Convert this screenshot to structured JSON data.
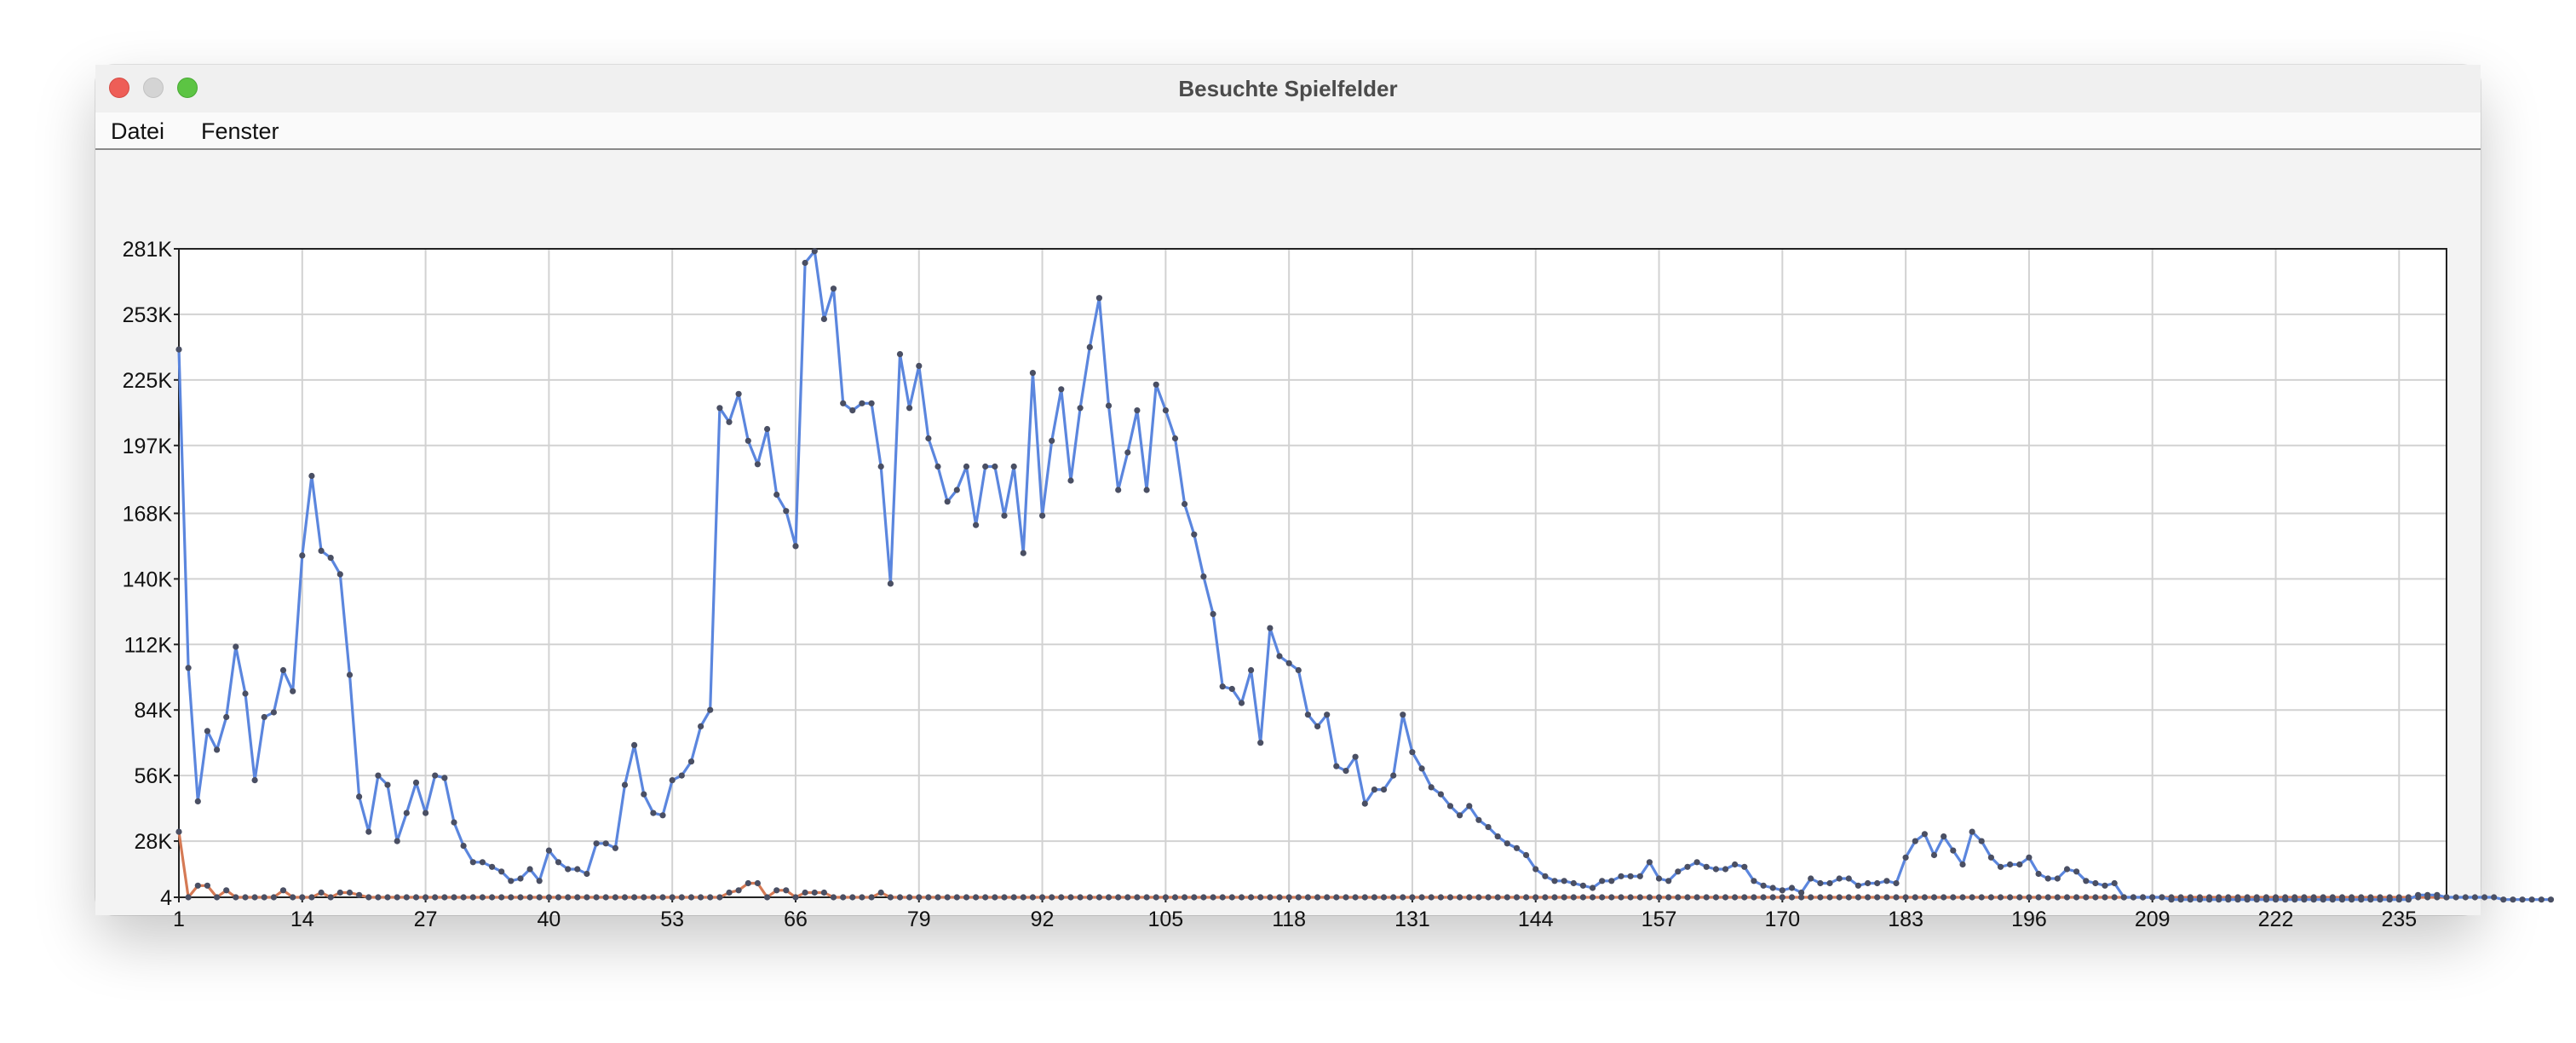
{
  "window": {
    "title": "Besuchte Spielfelder"
  },
  "menu": {
    "items": [
      "Datei",
      "Fenster"
    ]
  },
  "colors": {
    "series_visited": "#5b86de",
    "series_other": "#d57a55",
    "marker": "#4a4f63",
    "grid": "#d2d2d2",
    "plot_background": "#ffffff",
    "window_background": "#f3f3f3"
  },
  "chart_data": {
    "type": "line",
    "title": "",
    "xlabel": "",
    "ylabel": "",
    "x_start": 1,
    "x_end": 240,
    "xlim": [
      1,
      240
    ],
    "ylim": [
      4,
      281
    ],
    "x_ticks": [
      "1",
      "14",
      "27",
      "40",
      "53",
      "66",
      "79",
      "92",
      "105",
      "118",
      "131",
      "144",
      "157",
      "170",
      "183",
      "196",
      "209",
      "222",
      "235"
    ],
    "y_ticks": [
      "4",
      "28K",
      "56K",
      "84K",
      "112K",
      "140K",
      "168K",
      "197K",
      "225K",
      "253K",
      "281K"
    ],
    "y_tick_values": [
      4,
      28,
      56,
      84,
      112,
      140,
      168,
      197,
      225,
      253,
      281
    ],
    "grid": true,
    "markers": true,
    "legend": false,
    "series": [
      {
        "values": [
          238,
          102,
          45,
          75,
          67,
          81,
          111,
          91,
          54,
          81,
          83,
          101,
          92,
          150,
          184,
          152,
          149,
          142,
          99,
          47,
          32,
          56,
          52,
          28,
          40,
          53,
          40,
          56,
          55,
          36,
          26,
          19,
          19,
          17,
          15,
          11,
          12,
          16,
          11,
          24,
          19,
          16,
          16,
          14,
          27,
          27,
          25,
          52,
          69,
          48,
          40,
          39,
          54,
          56,
          62,
          77,
          84,
          213,
          207,
          219,
          199,
          189,
          204,
          176,
          169,
          154,
          275,
          280,
          251,
          264,
          215,
          212,
          215,
          215,
          188,
          138,
          236,
          213,
          231,
          200,
          188,
          173,
          178,
          188,
          163,
          188,
          188,
          167,
          188,
          151,
          228,
          167,
          199,
          221,
          182,
          213,
          239,
          260,
          214,
          178,
          194,
          212,
          178,
          223,
          212,
          200,
          172,
          159,
          141,
          125,
          94,
          93,
          87,
          101,
          70,
          119,
          107,
          104,
          101,
          82,
          77,
          82,
          60,
          58,
          64,
          44,
          50,
          50,
          56,
          82,
          66,
          59,
          51,
          48,
          43,
          39,
          43,
          37,
          34,
          30,
          27,
          25,
          22,
          16,
          13,
          11,
          11,
          10,
          9,
          8,
          11,
          11,
          13,
          13,
          13,
          19,
          12,
          11,
          15,
          17,
          19,
          17,
          16,
          16,
          18,
          17,
          11,
          9,
          8,
          7,
          8,
          6,
          12,
          10,
          10,
          12,
          12,
          9,
          10,
          10,
          11,
          10,
          21,
          28,
          31,
          22,
          30,
          24,
          18,
          32,
          28,
          21,
          17,
          18,
          18,
          21,
          14,
          12,
          12,
          16,
          15,
          11,
          10,
          9,
          10,
          4,
          4,
          4,
          4,
          4,
          3,
          3,
          3,
          3,
          3,
          3,
          3,
          3,
          3,
          3,
          3,
          3,
          3,
          3,
          3,
          3,
          3,
          3,
          3,
          3,
          3,
          3,
          3,
          3,
          3,
          3,
          5,
          5,
          5,
          4,
          4,
          4,
          4,
          4,
          4,
          3,
          3,
          3,
          3,
          3,
          3
        ]
      },
      {
        "values": [
          32,
          4,
          9,
          9,
          4,
          7,
          4,
          4,
          4,
          4,
          4,
          7,
          4,
          4,
          4,
          6,
          4,
          6,
          6,
          5,
          4,
          4,
          4,
          4,
          4,
          4,
          4,
          4,
          4,
          4,
          4,
          4,
          4,
          4,
          4,
          4,
          4,
          4,
          4,
          4,
          4,
          4,
          4,
          4,
          4,
          4,
          4,
          4,
          4,
          4,
          4,
          4,
          4,
          4,
          4,
          4,
          4,
          4,
          6,
          7,
          10,
          10,
          4,
          7,
          7,
          4,
          6,
          6,
          6,
          4,
          4,
          4,
          4,
          4,
          6,
          4,
          4,
          4,
          4,
          4,
          4,
          4,
          4,
          4,
          4,
          4,
          4,
          4,
          4,
          4,
          4,
          4,
          4,
          4,
          4,
          4,
          4,
          4,
          4,
          4,
          4,
          4,
          4,
          4,
          4,
          4,
          4,
          4,
          4,
          4,
          4,
          4,
          4,
          4,
          4,
          4,
          4,
          4,
          4,
          4,
          4,
          4,
          4,
          4,
          4,
          4,
          4,
          4,
          4,
          4,
          4,
          4,
          4,
          4,
          4,
          4,
          4,
          4,
          4,
          4,
          4,
          4,
          4,
          4,
          4,
          4,
          4,
          4,
          4,
          4,
          4,
          4,
          4,
          4,
          4,
          4,
          4,
          4,
          4,
          4,
          4,
          4,
          4,
          4,
          4,
          4,
          4,
          4,
          4,
          4,
          4,
          4,
          4,
          4,
          4,
          4,
          4,
          4,
          4,
          4,
          4,
          4,
          4,
          4,
          4,
          4,
          4,
          4,
          4,
          4,
          4,
          4,
          4,
          4,
          4,
          4,
          4,
          4,
          4,
          4,
          4,
          4,
          4,
          4,
          4,
          4,
          4,
          4,
          4,
          4,
          4,
          4,
          4,
          4,
          4,
          4,
          4,
          4,
          4,
          4,
          4,
          4,
          4,
          4,
          4,
          4,
          4,
          4,
          4,
          4,
          4,
          4,
          4,
          4,
          4,
          4,
          4,
          4,
          4,
          4
        ]
      }
    ]
  }
}
